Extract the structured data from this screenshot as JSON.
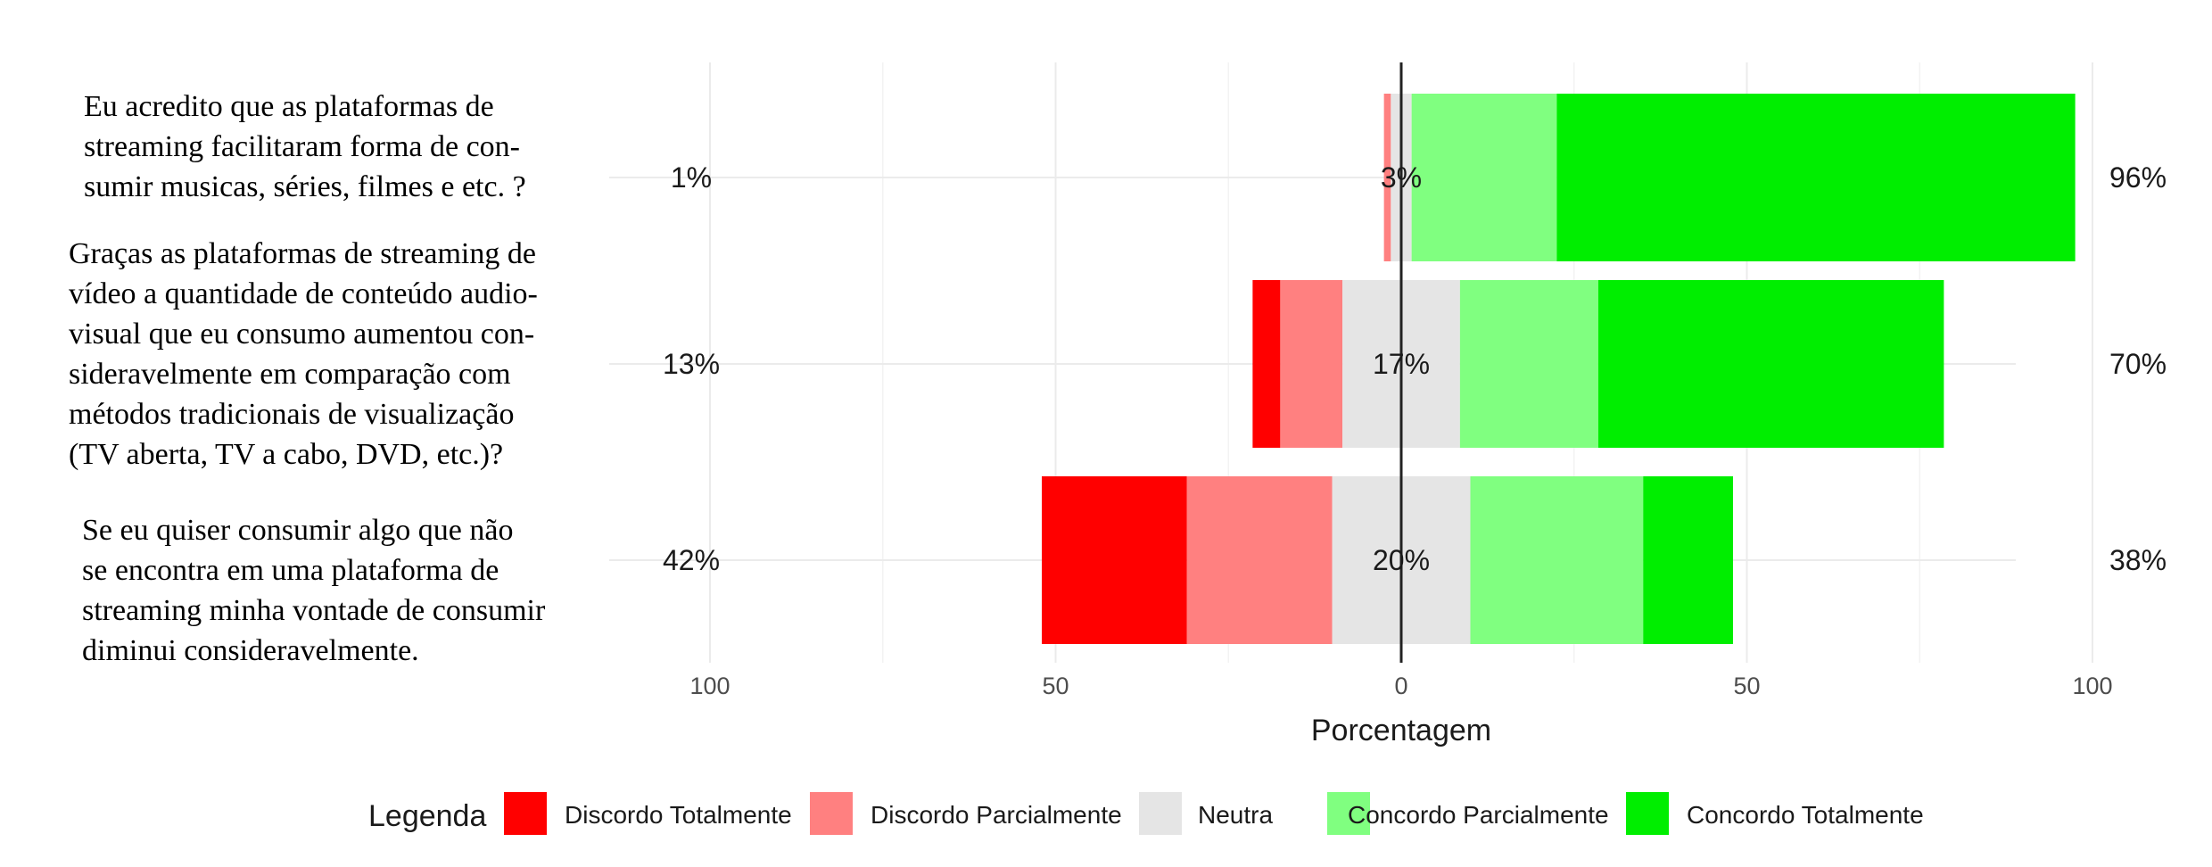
{
  "questions": [
    "Eu acredito que as plataformas de\nstreaming facilitaram  forma de con-\nsumir musicas, séries, filmes e etc. ?",
    "Graças as plataformas de streaming de\nvídeo a quantidade de conteúdo audio-\nvisual que eu consumo aumentou con-\nsideravelmente em comparação com\nmétodos tradicionais de visualização\n(TV aberta, TV a cabo, DVD, etc.)?",
    "Se eu quiser consumir algo que não\nse encontra em uma plataforma de\nstreaming minha vontade de consumir\ndiminui consideravelmente."
  ],
  "chart_data": {
    "type": "bar",
    "orientation": "horizontal",
    "stacked": "diverging",
    "xlabel": "Porcentagem",
    "ylabel": "",
    "xlim": [
      -100,
      100
    ],
    "x_ticks": [
      -100,
      -50,
      0,
      50,
      100
    ],
    "x_tick_labels": [
      "100",
      "50",
      "0",
      "50",
      "100"
    ],
    "grid": true,
    "legend": {
      "title": "Legenda",
      "position": "bottom"
    },
    "categories": [
      "Eu acredito que as plataformas de streaming facilitaram  forma de consumir musicas, séries, filmes e etc. ?",
      "Graças as plataformas de streaming de vídeo a quantidade de conteúdo audiovisual que eu consumo aumentou consideravelmente em comparação com métodos tradicionais de visualização (TV aberta, TV a cabo, DVD, etc.)?",
      "Se eu quiser consumir algo que não se encontra em uma plataforma de streaming minha vontade de consumir diminui consideravelmente."
    ],
    "series": [
      {
        "name": "Discordo Totalmente",
        "color": "#FF0000",
        "values": [
          0,
          4,
          21
        ]
      },
      {
        "name": "Discordo Parcialmente",
        "color": "#FF8080",
        "values": [
          1,
          9,
          21
        ]
      },
      {
        "name": "Neutra",
        "color": "#E5E5E5",
        "values": [
          3,
          17,
          20
        ]
      },
      {
        "name": "Concordo Parcialmente",
        "color": "#80FF80",
        "values": [
          21,
          20,
          25
        ]
      },
      {
        "name": "Concordo Totalmente",
        "color": "#00EE00",
        "values": [
          75,
          50,
          13
        ]
      }
    ],
    "left_labels": [
      "1%",
      "13%",
      "42%"
    ],
    "center_labels": [
      "3%",
      "17%",
      "20%"
    ],
    "right_labels": [
      "96%",
      "70%",
      "38%"
    ]
  }
}
